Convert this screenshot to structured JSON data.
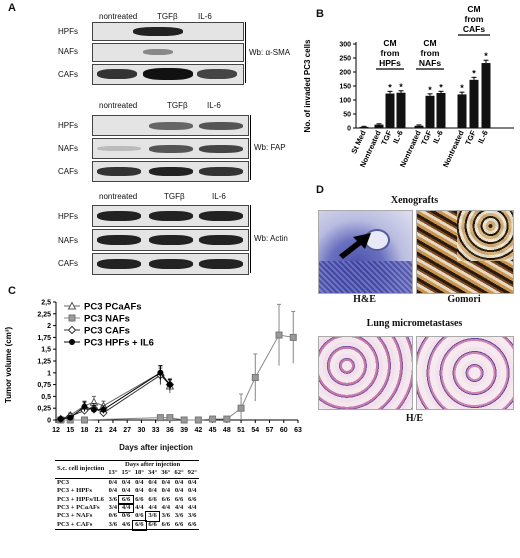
{
  "panelA": {
    "label": "A",
    "conditions": [
      "nontreated",
      "TGFβ",
      "IL-6"
    ],
    "blots": [
      {
        "rows": [
          "HPFs",
          "NAFs",
          "CAFs"
        ],
        "wb": "Wb: α-SMA"
      },
      {
        "rows": [
          "HPFs",
          "NAFs",
          "CAFs"
        ],
        "wb": "Wb: FAP"
      },
      {
        "rows": [
          "HPFs",
          "NAFs",
          "CAFs"
        ],
        "wb": "Wb: Actin"
      }
    ]
  },
  "panelB": {
    "label": "B",
    "groups": [
      "CM from HPFs",
      "CM from NAFs",
      "CM from CAFs"
    ],
    "star": "*"
  },
  "panelC": {
    "label": "C",
    "days_label": "Days after injection",
    "table": {
      "head1": "S.c. cell injection",
      "head2": "Days after injection",
      "days": [
        "13°",
        "15°",
        "18°",
        "34°",
        "36°",
        "62°",
        "92°"
      ],
      "rows": [
        {
          "name": "PC3",
          "vals": [
            "0/4",
            "0/4",
            "0/4",
            "0/4",
            "0/4",
            "0/4",
            "0/4"
          ]
        },
        {
          "name": "PC3 + HPFs",
          "vals": [
            "0/4",
            "0/4",
            "0/4",
            "0/4",
            "0/4",
            "0/4",
            "0/4"
          ]
        },
        {
          "name": "PC3 + HPFs/IL6",
          "vals": [
            "3/6",
            "6/6",
            "6/6",
            "6/6",
            "6/6",
            "6/6",
            "6/6"
          ]
        },
        {
          "name": "PC3 + PCaAFs",
          "vals": [
            "3/4",
            "4/4",
            "4/4",
            "4/4",
            "4/4",
            "4/4",
            "4/4"
          ]
        },
        {
          "name": "PC3 + NAFs",
          "vals": [
            "0/6",
            "0/6",
            "0/6",
            "3/6",
            "3/6",
            "3/6",
            "3/6"
          ]
        },
        {
          "name": "PC3 + CAFs",
          "vals": [
            "3/6",
            "4/6",
            "6/6",
            "6/6",
            "6/6",
            "6/6",
            "6/6"
          ]
        }
      ],
      "highlights": [
        [
          2,
          1
        ],
        [
          3,
          1
        ],
        [
          4,
          3
        ],
        [
          5,
          2
        ]
      ]
    }
  },
  "panelD": {
    "label": "D",
    "xenografts": "Xenografts",
    "he": "H&E",
    "gomori": "Gomori",
    "lung": "Lung micrometastases",
    "he2": "H/E"
  },
  "chart_data": [
    {
      "type": "bar",
      "panel": "B",
      "ylabel": "No. of invaded PC3 cells",
      "ylim": [
        0,
        300
      ],
      "yticks": [
        0,
        50,
        100,
        150,
        200,
        250,
        300
      ],
      "categories": [
        "St Med",
        "Nontreated",
        "TGF",
        "IL-6",
        "Nontreated",
        "TGF",
        "IL-6",
        "Nontreated",
        "TGF",
        "IL-6"
      ],
      "values": [
        4,
        12,
        123,
        126,
        8,
        115,
        125,
        120,
        172,
        232
      ],
      "errors": [
        2,
        3,
        8,
        7,
        3,
        7,
        6,
        8,
        9,
        10
      ],
      "significant": [
        false,
        false,
        true,
        true,
        false,
        true,
        true,
        true,
        true,
        true
      ]
    },
    {
      "type": "line",
      "panel": "C",
      "ylabel": "Tumor volume (cm³)",
      "xlabel": "Days after injection",
      "xlim": [
        12,
        63
      ],
      "ylim": [
        0,
        2.5
      ],
      "xticks": [
        12,
        15,
        18,
        21,
        24,
        27,
        30,
        33,
        36,
        39,
        42,
        45,
        48,
        51,
        54,
        57,
        60,
        63
      ],
      "yticks": [
        "0",
        "0,25",
        "0,5",
        "0,75",
        "1",
        "1,25",
        "1,5",
        "1,75",
        "2",
        "2,25",
        "2,5"
      ],
      "series": [
        {
          "name": "PC3 PCaAFs",
          "marker": "triangle-open",
          "x": [
            13,
            15,
            18,
            20,
            22,
            34,
            36
          ],
          "y": [
            0.02,
            0.1,
            0.3,
            0.38,
            0.3,
            1.0,
            0.72
          ],
          "err": [
            0.02,
            0.05,
            0.1,
            0.12,
            0.1,
            0.1,
            0.15
          ]
        },
        {
          "name": "PC3 NAFs",
          "marker": "square-gray",
          "x": [
            13,
            15,
            18,
            34,
            36,
            39,
            42,
            45,
            48,
            51,
            54,
            59,
            62
          ],
          "y": [
            0,
            0,
            0,
            0.05,
            0.05,
            0,
            0,
            0.02,
            0.02,
            0.25,
            0.9,
            1.8,
            1.75
          ],
          "err": [
            0,
            0,
            0,
            0,
            0,
            0,
            0,
            0,
            0,
            0.3,
            0.5,
            0.65,
            0.55
          ]
        },
        {
          "name": "PC3 CAFs",
          "marker": "diamond-open",
          "x": [
            13,
            15,
            18,
            20,
            22,
            34,
            36
          ],
          "y": [
            0.02,
            0.08,
            0.2,
            0.25,
            0.15,
            0.95,
            0.75
          ],
          "err": [
            0.02,
            0.05,
            0.08,
            0.1,
            0.08,
            0.2,
            0.12
          ]
        },
        {
          "name": "PC3 HPFs + IL6",
          "marker": "circle-filled",
          "x": [
            13,
            15,
            18,
            20,
            22,
            34,
            36
          ],
          "y": [
            0.02,
            0.05,
            0.28,
            0.22,
            0.22,
            1.0,
            0.75
          ],
          "err": [
            0.02,
            0.03,
            0.1,
            0.08,
            0.08,
            0.15,
            0.1
          ]
        }
      ]
    }
  ]
}
